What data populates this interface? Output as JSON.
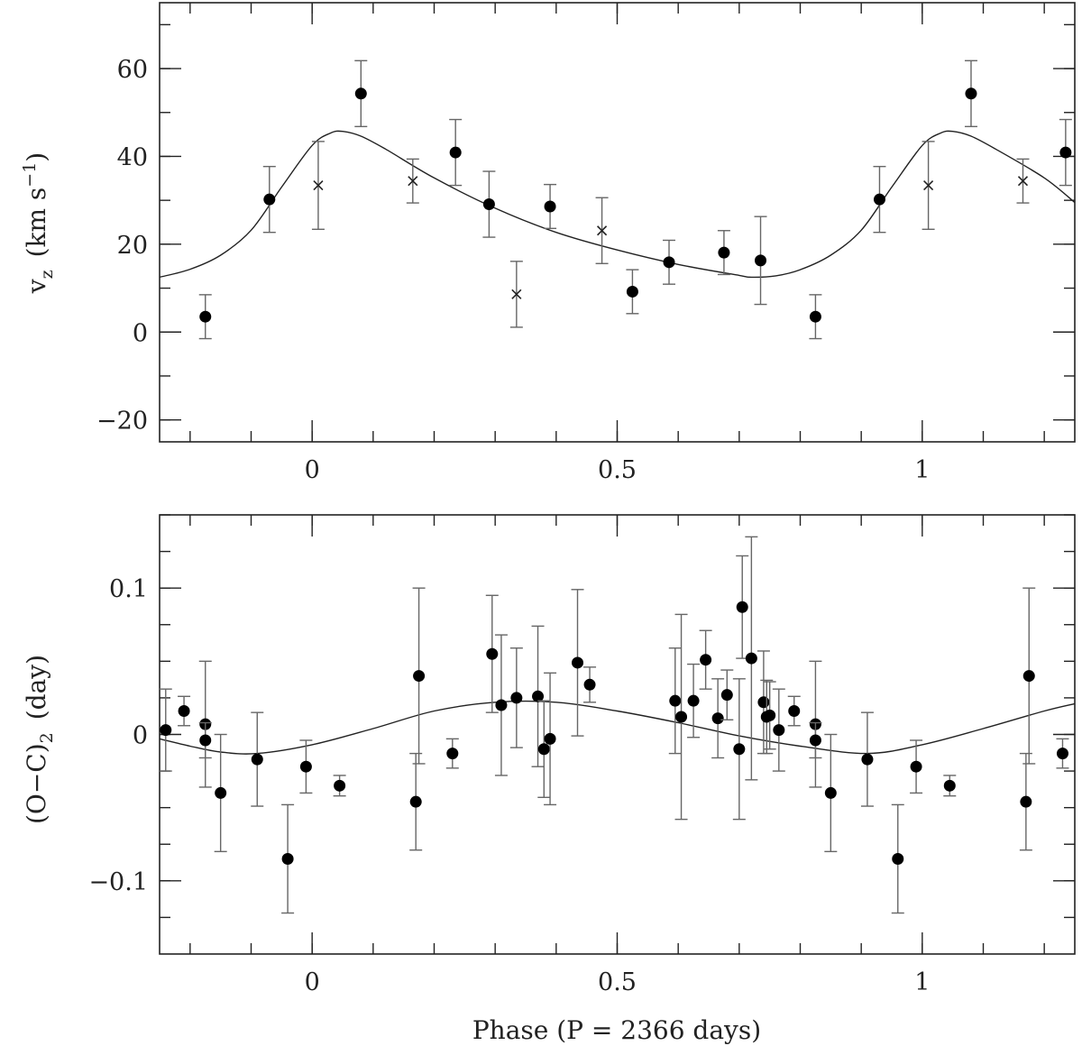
{
  "chart_data": [
    {
      "type": "scatter",
      "panel": "top",
      "title": "",
      "xlabel": "",
      "ylabel": "v_z (km s^-1)",
      "ylabel_main": "v",
      "ylabel_sub": "z",
      "ylabel_units": "(km s",
      "ylabel_exp": "−1",
      "ylabel_close": ")",
      "xlim": [
        -0.25,
        1.25
      ],
      "ylim": [
        -25,
        75
      ],
      "xticks": [
        0,
        0.5,
        1
      ],
      "xtick_labels": [
        "0",
        "0.5",
        "1"
      ],
      "yticks": [
        -20,
        0,
        20,
        40,
        60
      ],
      "ytick_labels": [
        "−20",
        "0",
        "20",
        "40",
        "60"
      ],
      "series": [
        {
          "name": "filled",
          "marker": "circle",
          "points": [
            {
              "x": -0.175,
              "y": 3.5,
              "err": 5
            },
            {
              "x": -0.07,
              "y": 30.2,
              "err": 7.5
            },
            {
              "x": 0.08,
              "y": 54.3,
              "err": 7.5
            },
            {
              "x": 0.235,
              "y": 40.9,
              "err": 7.5
            },
            {
              "x": 0.29,
              "y": 29.1,
              "err": 7.5
            },
            {
              "x": 0.39,
              "y": 28.6,
              "err": 5
            },
            {
              "x": 0.525,
              "y": 9.2,
              "err": 5
            },
            {
              "x": 0.585,
              "y": 15.9,
              "err": 5
            },
            {
              "x": 0.675,
              "y": 18.1,
              "err": 5
            },
            {
              "x": 0.735,
              "y": 16.3,
              "err": 10
            },
            {
              "x": 0.825,
              "y": 3.5,
              "err": 5
            },
            {
              "x": 0.93,
              "y": 30.2,
              "err": 7.5
            },
            {
              "x": 1.08,
              "y": 54.3,
              "err": 7.5
            },
            {
              "x": 1.235,
              "y": 40.9,
              "err": 7.5
            }
          ]
        },
        {
          "name": "crosses",
          "marker": "x",
          "points": [
            {
              "x": 0.01,
              "y": 33.4,
              "err": 10
            },
            {
              "x": 0.165,
              "y": 34.4,
              "err": 5
            },
            {
              "x": 0.335,
              "y": 8.6,
              "err": 7.5
            },
            {
              "x": 0.475,
              "y": 23.1,
              "err": 7.5
            },
            {
              "x": 1.01,
              "y": 33.4,
              "err": 10
            },
            {
              "x": 1.165,
              "y": 34.4,
              "err": 5
            }
          ]
        }
      ],
      "model_curve": {
        "x": [
          -0.25,
          -0.2,
          -0.15,
          -0.1,
          -0.05,
          0.0,
          0.03,
          0.05,
          0.08,
          0.12,
          0.2,
          0.3,
          0.4,
          0.5,
          0.6,
          0.7,
          0.72,
          0.76,
          0.8,
          0.85,
          0.9,
          0.95,
          1.0,
          1.03,
          1.05,
          1.08,
          1.12,
          1.2,
          1.25
        ],
        "y": [
          12.5,
          14.3,
          17.5,
          23.2,
          33,
          42.5,
          45.3,
          45.7,
          44.6,
          41.7,
          35.1,
          28.2,
          22.7,
          18.7,
          15.4,
          12.9,
          12.5,
          12.8,
          14.2,
          17.5,
          23.2,
          33,
          42.5,
          45.3,
          45.7,
          44.6,
          41.7,
          35.1,
          29.5
        ]
      }
    },
    {
      "type": "scatter",
      "panel": "bottom",
      "title": "",
      "xlabel": "Phase (P = 2366 days)",
      "ylabel": "(O−C)_2 (day)",
      "ylabel_main": "(O−C)",
      "ylabel_sub": "2",
      "ylabel_units": "(day)",
      "xlim": [
        -0.25,
        1.25
      ],
      "ylim": [
        -0.15,
        0.15
      ],
      "xticks": [
        0,
        0.5,
        1
      ],
      "xtick_labels": [
        "0",
        "0.5",
        "1"
      ],
      "yticks": [
        -0.1,
        0,
        0.1
      ],
      "ytick_labels": [
        "−0.1",
        "0",
        "0.1"
      ],
      "series": [
        {
          "name": "O-C residuals",
          "marker": "circle",
          "points": [
            {
              "x": -0.24,
              "y": 0.003,
              "err": 0.028
            },
            {
              "x": -0.21,
              "y": 0.016,
              "err": 0.01
            },
            {
              "x": -0.175,
              "y": 0.007,
              "err": 0.043
            },
            {
              "x": -0.175,
              "y": -0.004,
              "err": 0.012
            },
            {
              "x": -0.15,
              "y": -0.04,
              "err": 0.04
            },
            {
              "x": -0.09,
              "y": -0.017,
              "err": 0.032
            },
            {
              "x": -0.04,
              "y": -0.085,
              "err": 0.037
            },
            {
              "x": -0.01,
              "y": -0.022,
              "err": 0.018
            },
            {
              "x": 0.045,
              "y": -0.035,
              "err": 0.007
            },
            {
              "x": 0.17,
              "y": -0.046,
              "err": 0.033
            },
            {
              "x": 0.175,
              "y": 0.04,
              "err": 0.06
            },
            {
              "x": 0.23,
              "y": -0.013,
              "err": 0.01
            },
            {
              "x": 0.295,
              "y": 0.055,
              "err": 0.04
            },
            {
              "x": 0.31,
              "y": 0.02,
              "err": 0.048
            },
            {
              "x": 0.335,
              "y": 0.025,
              "err": 0.034
            },
            {
              "x": 0.37,
              "y": 0.026,
              "err": 0.048
            },
            {
              "x": 0.38,
              "y": -0.01,
              "err": 0.033
            },
            {
              "x": 0.39,
              "y": -0.003,
              "err": 0.045
            },
            {
              "x": 0.435,
              "y": 0.049,
              "err": 0.05
            },
            {
              "x": 0.455,
              "y": 0.034,
              "err": 0.012
            },
            {
              "x": 0.595,
              "y": 0.023,
              "err": 0.036
            },
            {
              "x": 0.605,
              "y": 0.012,
              "err": 0.07
            },
            {
              "x": 0.625,
              "y": 0.023,
              "err": 0.025
            },
            {
              "x": 0.645,
              "y": 0.051,
              "err": 0.02
            },
            {
              "x": 0.665,
              "y": 0.011,
              "err": 0.027
            },
            {
              "x": 0.68,
              "y": 0.027,
              "err": 0.017
            },
            {
              "x": 0.7,
              "y": -0.01,
              "err": 0.048
            },
            {
              "x": 0.705,
              "y": 0.087,
              "err": 0.035
            },
            {
              "x": 0.72,
              "y": 0.052,
              "err": 0.083
            },
            {
              "x": 0.74,
              "y": 0.022,
              "err": 0.035
            },
            {
              "x": 0.745,
              "y": 0.012,
              "err": 0.025
            },
            {
              "x": 0.75,
              "y": 0.013,
              "err": 0.023
            },
            {
              "x": 0.765,
              "y": 0.003,
              "err": 0.028
            },
            {
              "x": 0.79,
              "y": 0.016,
              "err": 0.01
            },
            {
              "x": 0.825,
              "y": 0.007,
              "err": 0.043
            },
            {
              "x": 0.825,
              "y": -0.004,
              "err": 0.012
            },
            {
              "x": 0.85,
              "y": -0.04,
              "err": 0.04
            },
            {
              "x": 0.91,
              "y": -0.017,
              "err": 0.032
            },
            {
              "x": 0.96,
              "y": -0.085,
              "err": 0.037
            },
            {
              "x": 0.99,
              "y": -0.022,
              "err": 0.018
            },
            {
              "x": 1.045,
              "y": -0.035,
              "err": 0.007
            },
            {
              "x": 1.17,
              "y": -0.046,
              "err": 0.033
            },
            {
              "x": 1.175,
              "y": 0.04,
              "err": 0.06
            },
            {
              "x": 1.23,
              "y": -0.013,
              "err": 0.01
            }
          ]
        }
      ],
      "model_curve": {
        "x": [
          -0.25,
          -0.2,
          -0.15,
          -0.09,
          0.0,
          0.1,
          0.2,
          0.3,
          0.4,
          0.5,
          0.6,
          0.7,
          0.8,
          0.91,
          1.0,
          1.1,
          1.2,
          1.25
        ],
        "y": [
          -0.003,
          -0.008,
          -0.012,
          -0.013,
          -0.007,
          0.004,
          0.016,
          0.022,
          0.022,
          0.016,
          0.008,
          -0.001,
          -0.008,
          -0.013,
          -0.007,
          0.004,
          0.016,
          0.021
        ]
      }
    }
  ]
}
